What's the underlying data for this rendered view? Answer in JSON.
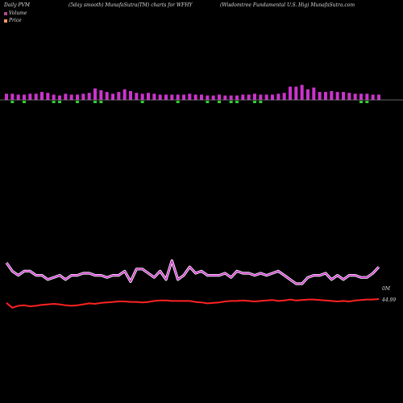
{
  "header": {
    "left": "Daily PVM",
    "mid": "(5day smooth) MunafaSutra(TM) charts for WFHY",
    "right": "(Wisdomtree  Fundamental U.S. Hig) MunafaSutra.com"
  },
  "legend": [
    {
      "label": "Volume",
      "color": "#b4478f"
    },
    {
      "label": "Price",
      "color": "#ff9966"
    }
  ],
  "colors": {
    "volume_up": "#cc33cc",
    "volume_down": "#33cc33",
    "volume_line": "#cc33cc",
    "price_line": "#ff2222",
    "zero_line": "#888888"
  },
  "chart_data": {
    "type": "line",
    "x_count": 64,
    "end_labels": {
      "volume": "0M",
      "price": "44.99"
    },
    "volume_bars": {
      "values": [
        7,
        7,
        6,
        6,
        7,
        7,
        9,
        8,
        6,
        5,
        7,
        6,
        6,
        7,
        8,
        13,
        11,
        9,
        7,
        9,
        12,
        10,
        8,
        7,
        8,
        7,
        6,
        6,
        6,
        6,
        6,
        7,
        6,
        6,
        5,
        5,
        6,
        5,
        5,
        5,
        6,
        6,
        7,
        6,
        6,
        6,
        7,
        8,
        15,
        15,
        17,
        12,
        14,
        9,
        9,
        10,
        9,
        9,
        8,
        7,
        7,
        7,
        6,
        6
      ],
      "down": [
        false,
        true,
        false,
        true,
        false,
        false,
        false,
        false,
        true,
        true,
        false,
        false,
        true,
        false,
        false,
        true,
        true,
        false,
        false,
        false,
        false,
        false,
        false,
        true,
        false,
        false,
        false,
        false,
        false,
        true,
        false,
        false,
        false,
        false,
        true,
        false,
        true,
        false,
        true,
        true,
        false,
        false,
        true,
        true,
        false,
        false,
        false,
        false,
        false,
        false,
        false,
        false,
        false,
        false,
        false,
        false,
        false,
        false,
        false,
        false,
        true,
        true,
        false,
        false
      ]
    },
    "volume_series": [
      20,
      16,
      14,
      16,
      16,
      14,
      14,
      12,
      13,
      14,
      12,
      14,
      14,
      15,
      15,
      14,
      14,
      13,
      14,
      14,
      16,
      11,
      17,
      17,
      15,
      13,
      16,
      12,
      21,
      12,
      14,
      18,
      15,
      16,
      14,
      14,
      14,
      15,
      13,
      16,
      15,
      15,
      14,
      15,
      14,
      15,
      16,
      14,
      12,
      10,
      10,
      13,
      14,
      14,
      15,
      12,
      14,
      12,
      14,
      14,
      13,
      13,
      15,
      18
    ],
    "price_series": [
      44.2,
      43.2,
      43.6,
      43.7,
      43.5,
      43.6,
      43.8,
      43.9,
      44.0,
      43.9,
      43.7,
      43.6,
      43.7,
      43.9,
      44.1,
      44.0,
      44.2,
      44.3,
      44.4,
      44.5,
      44.5,
      44.4,
      44.4,
      44.3,
      44.4,
      44.6,
      44.7,
      44.7,
      44.6,
      44.6,
      44.6,
      44.6,
      44.4,
      44.3,
      44.1,
      44.2,
      44.3,
      44.5,
      44.6,
      44.6,
      44.7,
      44.6,
      44.5,
      44.6,
      44.7,
      44.8,
      44.6,
      44.7,
      44.9,
      44.7,
      44.8,
      44.9,
      44.9,
      44.8,
      44.7,
      44.6,
      44.5,
      44.6,
      44.5,
      44.7,
      44.8,
      44.9,
      44.9,
      45.0
    ]
  }
}
